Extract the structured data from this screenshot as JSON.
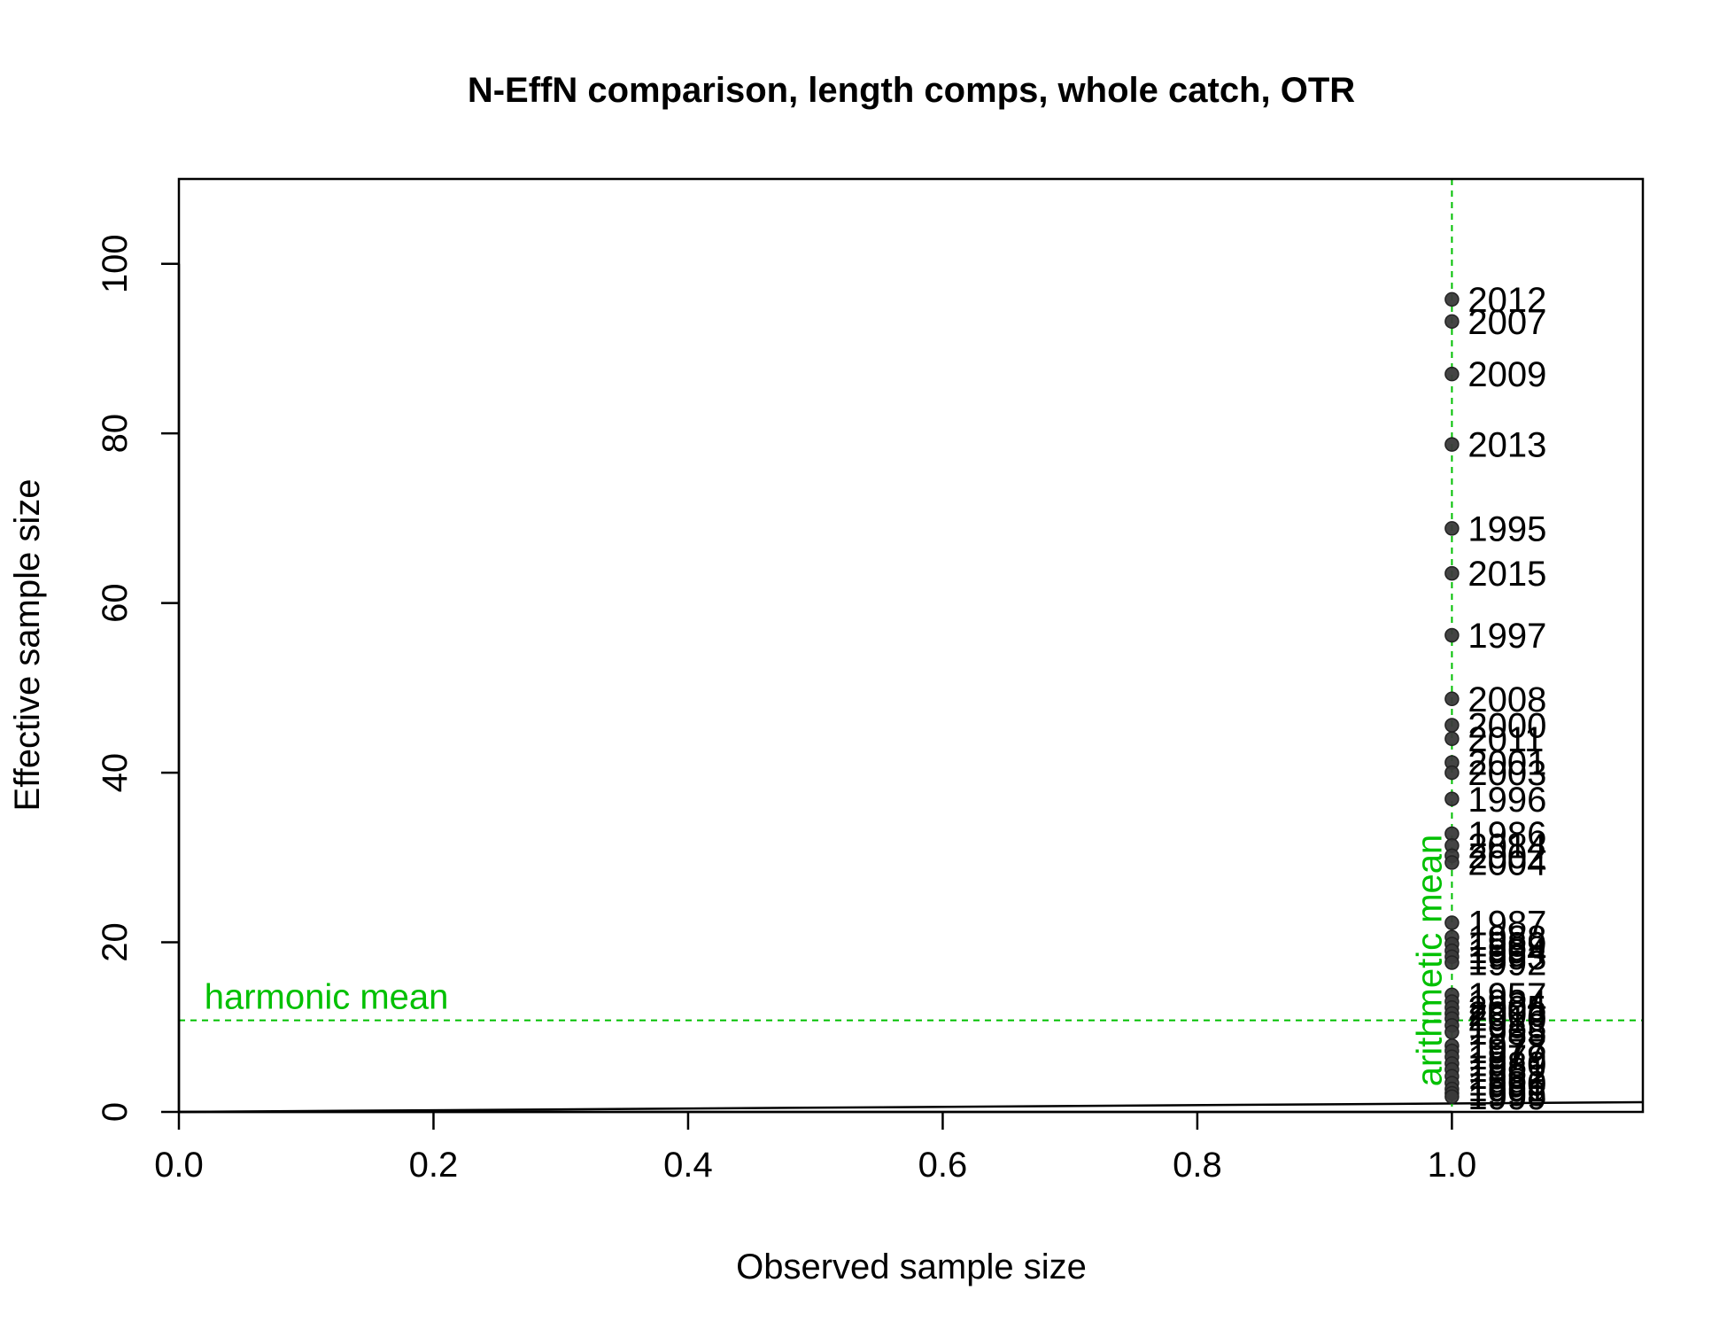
{
  "chart_data": {
    "type": "scatter",
    "title": "N-EffN comparison, length comps, whole catch, OTR",
    "xlabel": "Observed sample size",
    "ylabel": "Effective sample size",
    "xlim": [
      0,
      1.15
    ],
    "ylim": [
      0,
      110
    ],
    "x_ticks": [
      0.0,
      0.2,
      0.4,
      0.6,
      0.8,
      1.0
    ],
    "x_tick_labels": [
      "0.0",
      "0.2",
      "0.4",
      "0.6",
      "0.8",
      "1.0"
    ],
    "y_ticks": [
      0,
      20,
      40,
      60,
      80,
      100
    ],
    "y_tick_labels": [
      "0",
      "20",
      "40",
      "60",
      "80",
      "100"
    ],
    "grid": false,
    "point_color": "#3a3a3a",
    "reference_line_color": "#000000",
    "mean_line_color": "#00c000",
    "harmonic_mean": {
      "label": "harmonic mean",
      "value": 10.8
    },
    "arithmetic_mean": {
      "label": "arithmetic mean",
      "value": 1.0
    },
    "reference_line": {
      "x": [
        0,
        1.15
      ],
      "y": [
        0,
        1.15
      ]
    },
    "points": [
      {
        "x": 1.0,
        "y": 95.8,
        "label": "2012"
      },
      {
        "x": 1.0,
        "y": 93.2,
        "label": "2007"
      },
      {
        "x": 1.0,
        "y": 87.0,
        "label": "2009"
      },
      {
        "x": 1.0,
        "y": 78.7,
        "label": "2013"
      },
      {
        "x": 1.0,
        "y": 68.8,
        "label": "1995"
      },
      {
        "x": 1.0,
        "y": 63.5,
        "label": "2015"
      },
      {
        "x": 1.0,
        "y": 56.2,
        "label": "1997"
      },
      {
        "x": 1.0,
        "y": 48.7,
        "label": "2008"
      },
      {
        "x": 1.0,
        "y": 45.6,
        "label": "2000"
      },
      {
        "x": 1.0,
        "y": 44.0,
        "label": "2011"
      },
      {
        "x": 1.0,
        "y": 41.2,
        "label": "2001"
      },
      {
        "x": 1.0,
        "y": 40.0,
        "label": "2003"
      },
      {
        "x": 1.0,
        "y": 36.9,
        "label": "1996"
      },
      {
        "x": 1.0,
        "y": 32.8,
        "label": "1986"
      },
      {
        "x": 1.0,
        "y": 31.4,
        "label": "2014"
      },
      {
        "x": 1.0,
        "y": 30.2,
        "label": "2002"
      },
      {
        "x": 1.0,
        "y": 29.4,
        "label": "2004"
      },
      {
        "x": 1.0,
        "y": 22.3,
        "label": "1987"
      },
      {
        "x": 1.0,
        "y": 20.6,
        "label": "1988"
      },
      {
        "x": 1.0,
        "y": 19.8,
        "label": "1989"
      },
      {
        "x": 1.0,
        "y": 19.0,
        "label": "1994"
      },
      {
        "x": 1.0,
        "y": 18.3,
        "label": "1993"
      },
      {
        "x": 1.0,
        "y": 17.6,
        "label": "1992"
      },
      {
        "x": 1.0,
        "y": 13.8,
        "label": "1957"
      },
      {
        "x": 1.0,
        "y": 13.0,
        "label": "1984"
      },
      {
        "x": 1.0,
        "y": 12.3,
        "label": "2005"
      },
      {
        "x": 1.0,
        "y": 11.6,
        "label": "2006"
      },
      {
        "x": 1.0,
        "y": 11.0,
        "label": "2010"
      },
      {
        "x": 1.0,
        "y": 10.2,
        "label": "1983"
      },
      {
        "x": 1.0,
        "y": 9.4,
        "label": "1985"
      },
      {
        "x": 1.0,
        "y": 7.8,
        "label": "1978"
      },
      {
        "x": 1.0,
        "y": 7.2,
        "label": "1977"
      },
      {
        "x": 1.0,
        "y": 6.5,
        "label": "1979"
      },
      {
        "x": 1.0,
        "y": 5.7,
        "label": "1980"
      },
      {
        "x": 1.0,
        "y": 5.0,
        "label": "1981"
      },
      {
        "x": 1.0,
        "y": 4.2,
        "label": "1982"
      },
      {
        "x": 1.0,
        "y": 3.4,
        "label": "1990"
      },
      {
        "x": 1.0,
        "y": 2.7,
        "label": "1991"
      },
      {
        "x": 1.0,
        "y": 2.2,
        "label": "1998"
      },
      {
        "x": 1.0,
        "y": 1.8,
        "label": "1999"
      }
    ]
  }
}
